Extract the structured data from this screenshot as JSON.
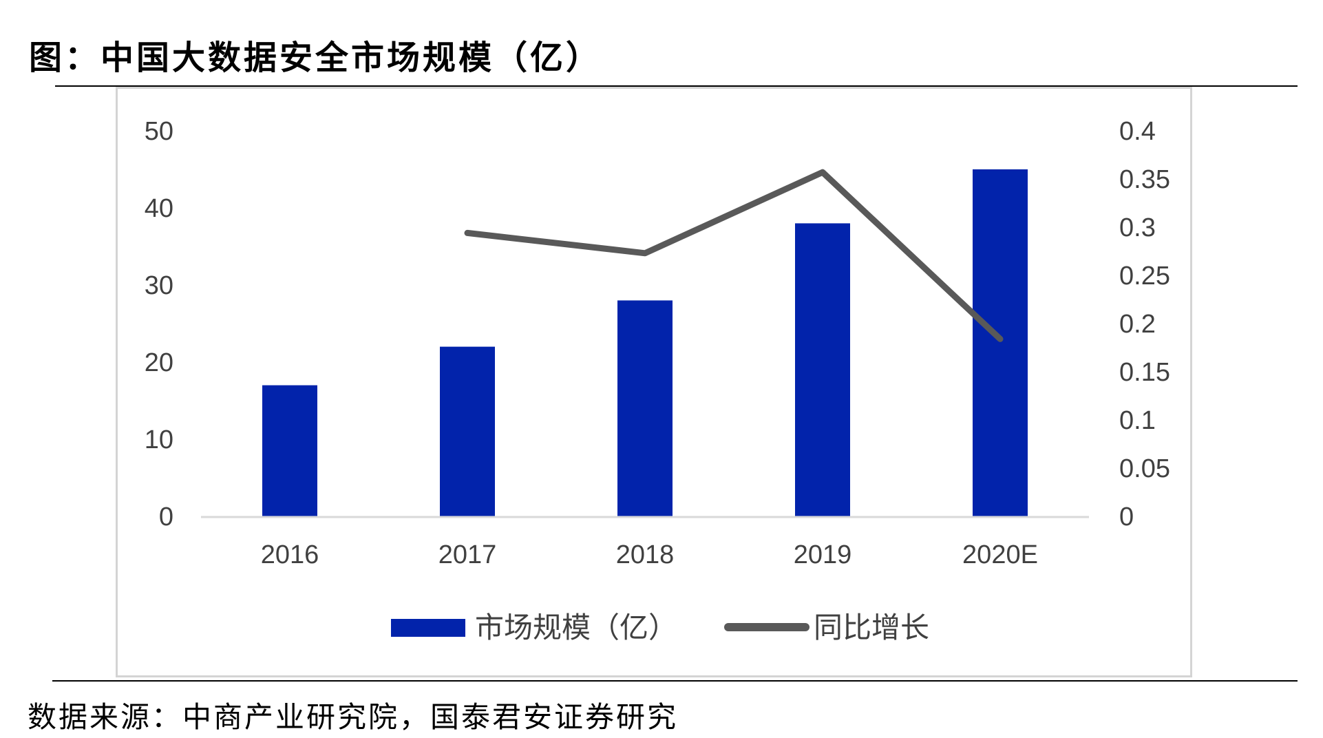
{
  "title": "图：中国大数据安全市场规模（亿）",
  "source": "数据来源：中商产业研究院，国泰君安证券研究",
  "colors": {
    "bar": "#0223AB",
    "line": "#595959",
    "axis": "#d9d9d9",
    "text": "#404040"
  },
  "chart_data": {
    "type": "bar",
    "categories": [
      "2016",
      "2017",
      "2018",
      "2019",
      "2020E"
    ],
    "series": [
      {
        "name": "市场规模（亿）",
        "type": "bar",
        "axis": "left",
        "values": [
          17,
          22,
          28,
          38,
          45
        ]
      },
      {
        "name": "同比增长",
        "type": "line",
        "axis": "right",
        "values": [
          null,
          0.294,
          0.273,
          0.357,
          0.184
        ]
      }
    ],
    "y_left": {
      "ylim": [
        0,
        50
      ],
      "ticks": [
        "0",
        "10",
        "20",
        "30",
        "40",
        "50"
      ]
    },
    "y_right": {
      "ylim": [
        0,
        0.4
      ],
      "ticks": [
        "0",
        "0.05",
        "0.1",
        "0.15",
        "0.2",
        "0.25",
        "0.3",
        "0.35",
        "0.4"
      ]
    },
    "legend_position": "bottom",
    "grid": false
  }
}
